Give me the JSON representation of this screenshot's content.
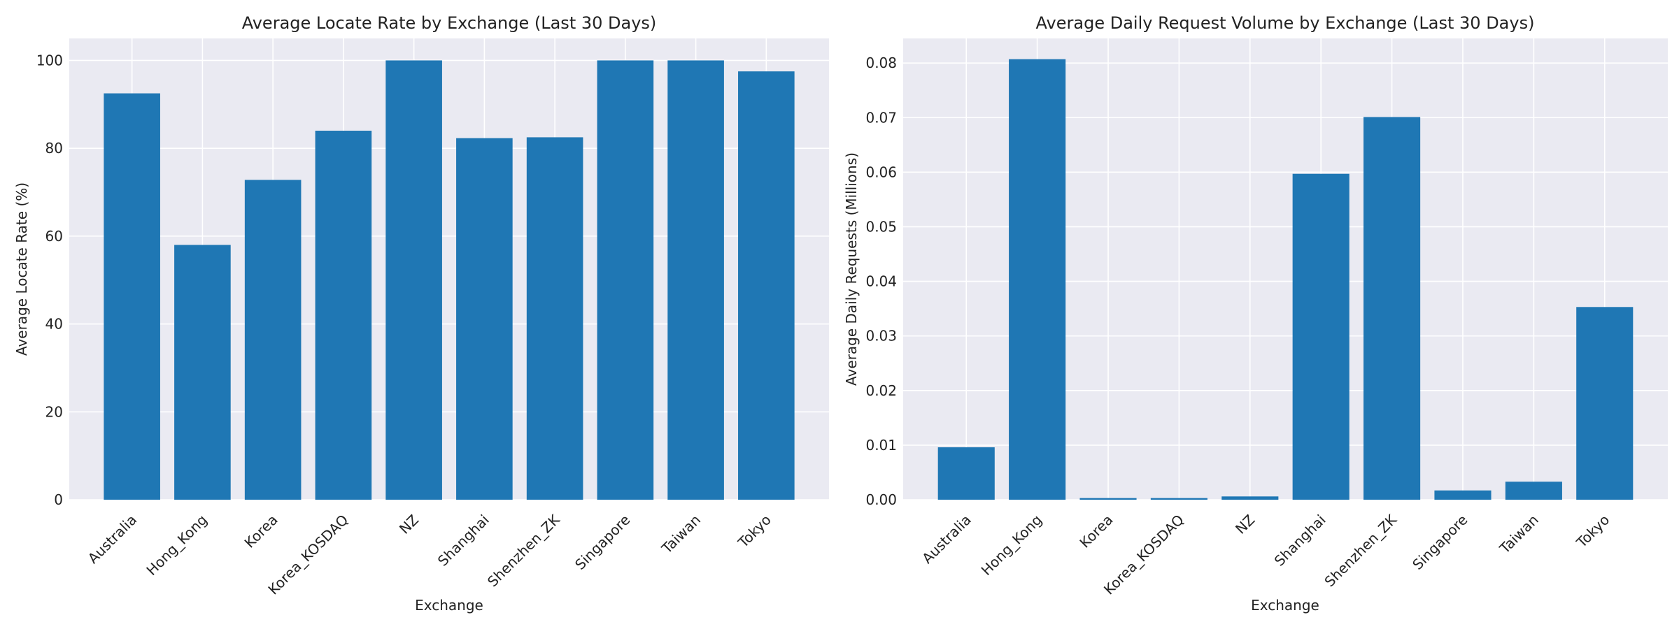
{
  "chart_data": [
    {
      "type": "bar",
      "title": "Average Locate Rate by Exchange (Last 30 Days)",
      "xlabel": "Exchange",
      "ylabel": "Average Locate Rate (%)",
      "categories": [
        "Australia",
        "Hong_Kong",
        "Korea",
        "Korea_KOSDAQ",
        "NZ",
        "Shanghai",
        "Shenzhen_ZK",
        "Singapore",
        "Taiwan",
        "Tokyo"
      ],
      "values": [
        92.5,
        58.0,
        72.8,
        84.0,
        100.0,
        82.3,
        82.5,
        100.0,
        100.0,
        97.5
      ],
      "ylim": [
        0,
        105
      ],
      "yticks": [
        "0",
        "20",
        "40",
        "60",
        "80",
        "100"
      ],
      "color": "#1f77b4",
      "grid": true
    },
    {
      "type": "bar",
      "title": "Average Daily Request Volume by Exchange (Last 30 Days)",
      "xlabel": "Exchange",
      "ylabel": "Average Daily Requests (Millions)",
      "categories": [
        "Australia",
        "Hong_Kong",
        "Korea",
        "Korea_KOSDAQ",
        "NZ",
        "Shanghai",
        "Shenzhen_ZK",
        "Singapore",
        "Taiwan",
        "Tokyo"
      ],
      "values": [
        0.0096,
        0.0807,
        0.0003,
        0.0003,
        0.0006,
        0.0597,
        0.0701,
        0.0017,
        0.0033,
        0.0353
      ],
      "ylim": [
        0,
        0.0845
      ],
      "yticks": [
        "0.00",
        "0.01",
        "0.02",
        "0.03",
        "0.04",
        "0.05",
        "0.06",
        "0.07",
        "0.08"
      ],
      "color": "#1f77b4",
      "grid": true
    }
  ]
}
